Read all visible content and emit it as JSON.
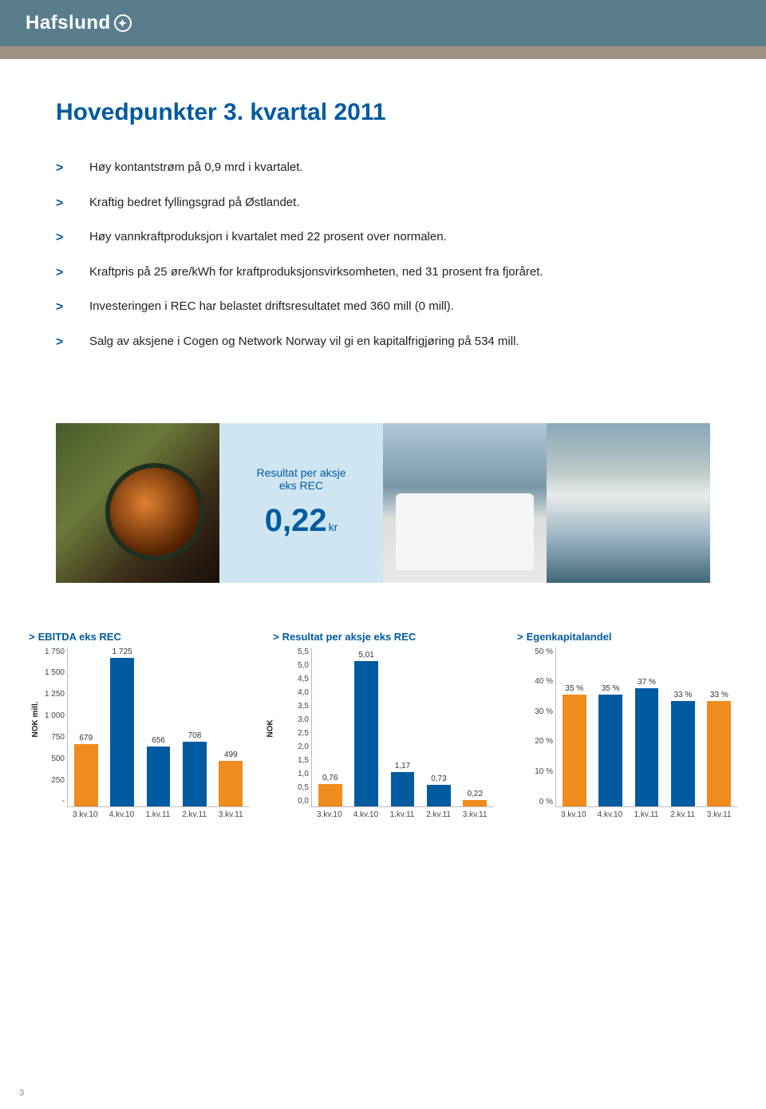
{
  "brand": {
    "name": "Hafslund"
  },
  "title": "Hovedpunkter 3. kvartal 2011",
  "bullets": [
    "Høy kontantstrøm på 0,9 mrd i kvartalet.",
    "Kraftig bedret fyllingsgrad på Østlandet.",
    "Høy vannkraftproduksjon i kvartalet med 22 prosent over normalen.",
    "Kraftpris på 25 øre/kWh for kraftproduksjonsvirksomheten, ned 31 prosent fra fjoråret.",
    "Investeringen i REC har belastet driftsresultatet med 360 mill (0 mill).",
    "Salg av aksjene i Cogen og Network Norway vil gi en kapitalfrigjøring på 534 mill."
  ],
  "callout": {
    "label_line1": "Resultat per aksje",
    "label_line2": "eks REC",
    "value": "0,22",
    "unit": "kr"
  },
  "colors": {
    "blue": "#005aa0",
    "orange": "#f08c1e",
    "grid": "#bbbbbb",
    "text": "#222222",
    "header_bg": "#5a7d8c",
    "accent_bg": "#a09080"
  },
  "charts": {
    "ebitda": {
      "title": "EBITDA eks REC",
      "y_label": "NOK mill.",
      "y_min": 0,
      "y_max": 1750,
      "y_ticks": [
        "1 750",
        "1 500",
        "1 250",
        "1 000",
        "750",
        "500",
        "250",
        "-"
      ],
      "categories": [
        "3.kv.10",
        "4.kv.10",
        "1.kv.11",
        "2.kv.11",
        "3.kv.11"
      ],
      "values": [
        679,
        1725,
        656,
        708,
        499
      ],
      "bar_colors": [
        "#f08c1e",
        "#005aa0",
        "#005aa0",
        "#005aa0",
        "#f08c1e"
      ],
      "value_labels": [
        "679",
        "1 725",
        "656",
        "708",
        "499"
      ]
    },
    "eps": {
      "title": "Resultat per aksje eks REC",
      "y_label": "NOK",
      "y_min": 0,
      "y_max": 5.5,
      "y_ticks": [
        "5,5",
        "5,0",
        "4,5",
        "4,0",
        "3,5",
        "3,0",
        "2,5",
        "2,0",
        "1,5",
        "1,0",
        "0,5",
        "0,0"
      ],
      "categories": [
        "3.kv.10",
        "4.kv.10",
        "1.kv.11",
        "2.kv.11",
        "3.kv.11"
      ],
      "values": [
        0.76,
        5.01,
        1.17,
        0.73,
        0.22
      ],
      "bar_colors": [
        "#f08c1e",
        "#005aa0",
        "#005aa0",
        "#005aa0",
        "#f08c1e"
      ],
      "value_labels": [
        "0,76",
        "5,01",
        "1,17",
        "0,73",
        "0,22"
      ]
    },
    "equity": {
      "title": "Egenkapitalandel",
      "y_min": 0,
      "y_max": 50,
      "y_ticks": [
        "50 %",
        "40 %",
        "30 %",
        "20 %",
        "10 %",
        "0 %"
      ],
      "categories": [
        "3.kv.10",
        "4.kv.10",
        "1.kv.11",
        "2.kv.11",
        "3.kv.11"
      ],
      "values": [
        35,
        35,
        37,
        33,
        33
      ],
      "bar_colors": [
        "#f08c1e",
        "#005aa0",
        "#005aa0",
        "#005aa0",
        "#f08c1e"
      ],
      "value_labels": [
        "35 %",
        "35 %",
        "37 %",
        "33 %",
        "33 %"
      ]
    }
  },
  "page_number": "3"
}
